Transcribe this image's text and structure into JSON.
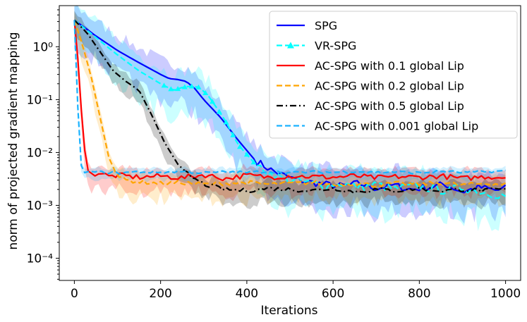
{
  "chart_data": {
    "type": "line",
    "title": "",
    "xlabel": "Iterations",
    "ylabel": "norm of projected gradient mapping",
    "yscale": "log",
    "xlim": [
      -35,
      1035
    ],
    "ylim": [
      3.8e-05,
      6.0
    ],
    "xticks": [
      0,
      200,
      400,
      600,
      800,
      1000
    ],
    "xtick_labels": [
      "0",
      "200",
      "400",
      "600",
      "800",
      "1000"
    ],
    "yticks": [
      0.0001,
      0.001,
      0.01,
      0.1,
      1
    ],
    "ytick_labels": [
      "10⁻⁴",
      "10⁻³",
      "10⁻²",
      "10⁻¹",
      "10⁰"
    ],
    "grid": false,
    "legend_position": "top-right",
    "series": [
      {
        "name": "SPG",
        "color": "#0000ff",
        "style": "solid",
        "marker": "",
        "x": [
          0,
          50,
          100,
          150,
          200,
          220,
          240,
          260,
          280,
          300,
          340,
          380,
          420,
          460,
          500,
          540,
          580,
          620,
          660,
          700,
          740,
          780,
          820,
          860,
          900,
          940,
          980,
          1000
        ],
        "y": [
          3.2,
          1.6,
          0.85,
          0.5,
          0.3,
          0.25,
          0.24,
          0.22,
          0.16,
          0.1,
          0.045,
          0.017,
          0.007,
          0.0045,
          0.0033,
          0.0028,
          0.0025,
          0.0023,
          0.0026,
          0.0021,
          0.0024,
          0.002,
          0.0022,
          0.0025,
          0.0018,
          0.0022,
          0.0019,
          0.0021
        ]
      },
      {
        "name": "VR-SPG",
        "color": "#00ffff",
        "style": "dashed",
        "marker": "triangle",
        "x": [
          0,
          50,
          100,
          150,
          200,
          230,
          250,
          270,
          290,
          310,
          330,
          350,
          380,
          420,
          460,
          500,
          540,
          580,
          620,
          660,
          700,
          740,
          780,
          820,
          860,
          900,
          940,
          980,
          1000
        ],
        "y": [
          3.2,
          1.5,
          0.7,
          0.35,
          0.2,
          0.15,
          0.17,
          0.18,
          0.17,
          0.12,
          0.07,
          0.04,
          0.014,
          0.006,
          0.0038,
          0.003,
          0.0027,
          0.0024,
          0.0026,
          0.0022,
          0.0025,
          0.002,
          0.0023,
          0.0021,
          0.0019,
          0.0022,
          0.0018,
          0.0016,
          0.0015
        ]
      },
      {
        "name": "AC-SPG with 0.1 global Lip",
        "color": "#ff0000",
        "style": "solid",
        "marker": "",
        "x": [
          0,
          10,
          20,
          30,
          40,
          60,
          80,
          100,
          150,
          200,
          250,
          300,
          350,
          400,
          450,
          500,
          550,
          600,
          650,
          700,
          750,
          800,
          850,
          900,
          950,
          1000
        ],
        "y": [
          3.2,
          0.4,
          0.02,
          0.0045,
          0.0038,
          0.0042,
          0.0035,
          0.0037,
          0.0034,
          0.0036,
          0.0033,
          0.0038,
          0.0032,
          0.0037,
          0.0034,
          0.0036,
          0.0035,
          0.0034,
          0.0036,
          0.0033,
          0.0035,
          0.0034,
          0.0036,
          0.0032,
          0.0035,
          0.0034
        ]
      },
      {
        "name": "AC-SPG with 0.2 global Lip",
        "color": "#ffa500",
        "style": "dashed",
        "marker": "",
        "x": [
          0,
          20,
          40,
          60,
          80,
          100,
          120,
          150,
          200,
          250,
          300,
          350,
          400,
          450,
          500,
          550,
          600,
          650,
          700,
          750,
          800,
          850,
          900,
          950,
          1000
        ],
        "y": [
          3.2,
          1.0,
          0.25,
          0.045,
          0.008,
          0.0035,
          0.003,
          0.0028,
          0.0026,
          0.0027,
          0.0025,
          0.0026,
          0.0027,
          0.0025,
          0.0026,
          0.0027,
          0.0025,
          0.0026,
          0.0024,
          0.0026,
          0.0025,
          0.0027,
          0.0024,
          0.0026,
          0.0025
        ]
      },
      {
        "name": "AC-SPG with 0.5 global Lip",
        "color": "#000000",
        "style": "dashdot",
        "marker": "",
        "x": [
          0,
          30,
          60,
          90,
          120,
          150,
          180,
          210,
          240,
          270,
          300,
          350,
          400,
          450,
          500,
          550,
          600,
          650,
          700,
          750,
          800,
          850,
          900,
          950,
          1000
        ],
        "y": [
          3.2,
          1.8,
          0.8,
          0.35,
          0.22,
          0.15,
          0.05,
          0.015,
          0.006,
          0.0035,
          0.0025,
          0.002,
          0.0019,
          0.0021,
          0.002,
          0.0019,
          0.0021,
          0.0018,
          0.002,
          0.0019,
          0.0021,
          0.0019,
          0.002,
          0.0019,
          0.002
        ]
      },
      {
        "name": "AC-SPG with 0.001 global Lip",
        "color": "#1ab2ff",
        "style": "dashed",
        "marker": "",
        "x": [
          0,
          5,
          10,
          15,
          20,
          30,
          50,
          100,
          150,
          200,
          250,
          300,
          350,
          400,
          450,
          500,
          550,
          600,
          650,
          700,
          750,
          800,
          850,
          900,
          950,
          1000
        ],
        "y": [
          3.2,
          0.5,
          0.02,
          0.006,
          0.0045,
          0.0042,
          0.0043,
          0.0041,
          0.0043,
          0.0042,
          0.0044,
          0.0041,
          0.0043,
          0.0042,
          0.0044,
          0.0041,
          0.0043,
          0.0042,
          0.0044,
          0.0042,
          0.0043,
          0.0041,
          0.0044,
          0.0042,
          0.0043,
          0.0045
        ]
      }
    ]
  }
}
